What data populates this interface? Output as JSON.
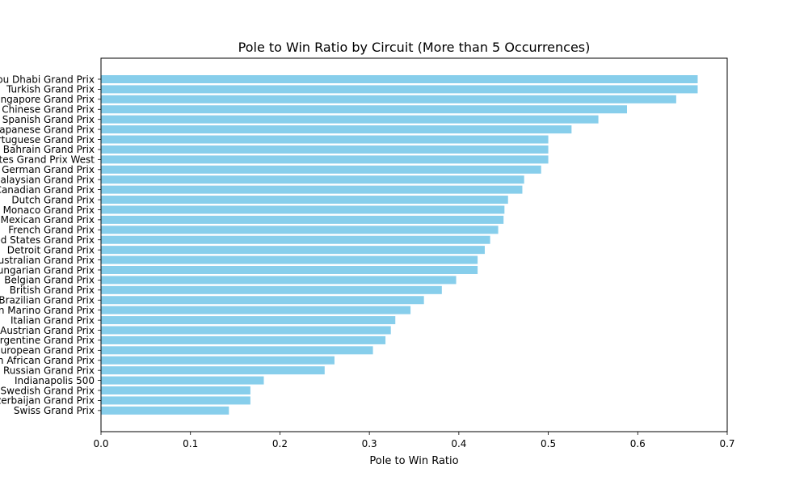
{
  "chart_data": {
    "type": "bar",
    "orientation": "horizontal",
    "title": "Pole to Win Ratio by Circuit (More than 5 Occurrences)",
    "xlabel": "Pole to Win Ratio",
    "ylabel": "",
    "xlim": [
      0,
      0.7
    ],
    "xticks": [
      "0.0",
      "0.1",
      "0.2",
      "0.3",
      "0.4",
      "0.5",
      "0.6",
      "0.7"
    ],
    "grid": false,
    "bar_color": "#87ceeb",
    "categories": [
      "Abu Dhabi Grand Prix",
      "Turkish Grand Prix",
      "Singapore Grand Prix",
      "Chinese Grand Prix",
      "Spanish Grand Prix",
      "Japanese Grand Prix",
      "Portuguese Grand Prix",
      "Bahrain Grand Prix",
      "United States Grand Prix West",
      "German Grand Prix",
      "Malaysian Grand Prix",
      "Canadian Grand Prix",
      "Dutch Grand Prix",
      "Monaco Grand Prix",
      "Mexican Grand Prix",
      "French Grand Prix",
      "United States Grand Prix",
      "Detroit Grand Prix",
      "Australian Grand Prix",
      "Hungarian Grand Prix",
      "Belgian Grand Prix",
      "British Grand Prix",
      "Brazilian Grand Prix",
      "San Marino Grand Prix",
      "Italian Grand Prix",
      "Austrian Grand Prix",
      "Argentine Grand Prix",
      "European Grand Prix",
      "South African Grand Prix",
      "Russian Grand Prix",
      "Indianapolis 500",
      "Swedish Grand Prix",
      "Azerbaijan Grand Prix",
      "Swiss Grand Prix"
    ],
    "values": [
      0.667,
      0.667,
      0.643,
      0.588,
      0.556,
      0.526,
      0.5,
      0.5,
      0.5,
      0.492,
      0.473,
      0.471,
      0.455,
      0.451,
      0.45,
      0.444,
      0.435,
      0.429,
      0.421,
      0.421,
      0.397,
      0.381,
      0.361,
      0.346,
      0.329,
      0.324,
      0.318,
      0.304,
      0.261,
      0.25,
      0.182,
      0.167,
      0.167,
      0.143
    ]
  }
}
